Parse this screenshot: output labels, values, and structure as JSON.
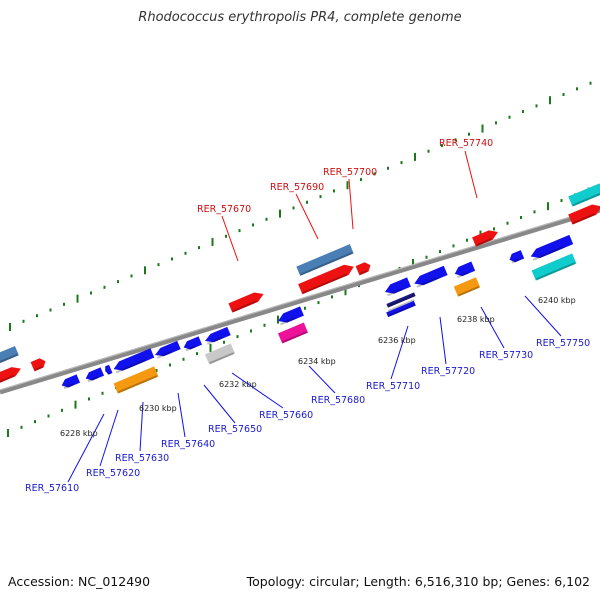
{
  "title": "Rhodococcus erythropolis PR4, complete genome",
  "footer": {
    "accession": "Accession: NC_012490",
    "summary": "Topology: circular; Length: 6,516,310 bp; Genes: 6,102"
  },
  "colors": {
    "red": "#ee1111",
    "blue": "#1111ee",
    "steel": "#4a7fb5",
    "orange": "#f59a10",
    "gray": "#c8c8c8",
    "magenta": "#ee1199",
    "cyan": "#11cccc",
    "navy": "#1a1a80",
    "backbone": "#888888",
    "tick": "#1a7a1a"
  },
  "kbp_ticks": [
    "6228 kbp",
    "6230 kbp",
    "6232 kbp",
    "6234 kbp",
    "6236 kbp",
    "6238 kbp",
    "6240 kbp"
  ],
  "gene_labels": {
    "forward": [
      "RER_57670",
      "RER_57690",
      "RER_57700",
      "RER_57740"
    ],
    "reverse": [
      "RER_57610",
      "RER_57620",
      "RER_57630",
      "RER_57640",
      "RER_57650",
      "RER_57660",
      "RER_57680",
      "RER_57710",
      "RER_57720",
      "RER_57730",
      "RER_57750"
    ]
  }
}
